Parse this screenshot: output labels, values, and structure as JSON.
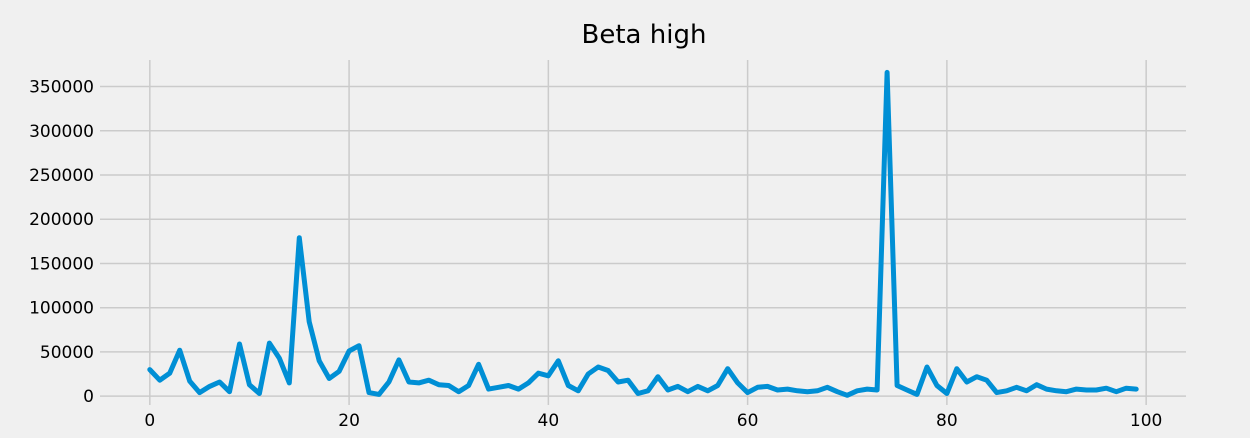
{
  "chart_data": {
    "type": "line",
    "title": "Beta high",
    "xlabel": "",
    "ylabel": "",
    "xlim": [
      -5,
      104
    ],
    "ylim": [
      -10000,
      380000
    ],
    "xticks": [
      0,
      20,
      40,
      60,
      80,
      100
    ],
    "xtick_labels": [
      "0",
      "20",
      "40",
      "60",
      "80",
      "100"
    ],
    "yticks": [
      0,
      50000,
      100000,
      150000,
      200000,
      250000,
      300000,
      350000
    ],
    "ytick_labels": [
      "0",
      "50000",
      "100000",
      "150000",
      "200000",
      "250000",
      "300000",
      "350000"
    ],
    "grid": true,
    "line_color": "#008fd5",
    "background": "#f0f0f0",
    "x": [
      0,
      1,
      2,
      3,
      4,
      5,
      6,
      7,
      8,
      9,
      10,
      11,
      12,
      13,
      14,
      15,
      16,
      17,
      18,
      19,
      20,
      21,
      22,
      23,
      24,
      25,
      26,
      27,
      28,
      29,
      30,
      31,
      32,
      33,
      34,
      35,
      36,
      37,
      38,
      39,
      40,
      41,
      42,
      43,
      44,
      45,
      46,
      47,
      48,
      49,
      50,
      51,
      52,
      53,
      54,
      55,
      56,
      57,
      58,
      59,
      60,
      61,
      62,
      63,
      64,
      65,
      66,
      67,
      68,
      69,
      70,
      71,
      72,
      73,
      74,
      75,
      76,
      77,
      78,
      79,
      80,
      81,
      82,
      83,
      84,
      85,
      86,
      87,
      88,
      89,
      90,
      91,
      92,
      93,
      94,
      95,
      96,
      97,
      98,
      99
    ],
    "values": [
      30000,
      18000,
      26000,
      52000,
      17000,
      4000,
      11000,
      16000,
      5000,
      59000,
      13000,
      3000,
      60000,
      43000,
      15000,
      179000,
      84000,
      40000,
      20000,
      28000,
      51000,
      57000,
      4000,
      2000,
      16000,
      41000,
      16000,
      15000,
      18000,
      13000,
      12000,
      5000,
      12000,
      36000,
      8000,
      10000,
      12000,
      8000,
      15000,
      26000,
      23000,
      40000,
      12000,
      6000,
      25000,
      33000,
      29000,
      16000,
      18000,
      3000,
      6000,
      22000,
      7000,
      11000,
      5000,
      11000,
      6000,
      12000,
      31000,
      15000,
      4000,
      10000,
      11000,
      7000,
      8000,
      6000,
      5000,
      6000,
      10000,
      5000,
      1000,
      6000,
      8000,
      7000,
      366000,
      12000,
      7000,
      2000,
      33000,
      12000,
      3000,
      31000,
      16000,
      22000,
      18000,
      4000,
      6000,
      10000,
      6000,
      13000,
      8000,
      6000,
      5000,
      8000,
      7000,
      7000,
      9000,
      5000,
      9000,
      8000
    ]
  }
}
